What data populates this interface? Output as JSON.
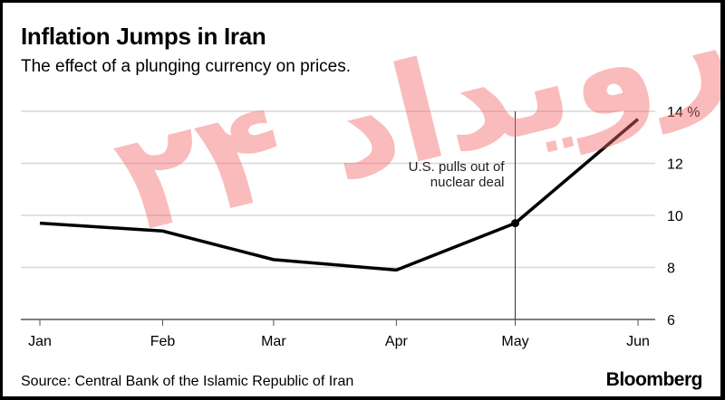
{
  "chart_data": {
    "type": "line",
    "title": "Inflation Jumps in Iran",
    "subtitle": "The effect of a plunging currency on prices.",
    "xlabel": "",
    "ylabel": "",
    "x": [
      "2018-01-01",
      "2018-02-01",
      "2018-03-01",
      "2018-04-01",
      "2018-05-01",
      "2018-06-01"
    ],
    "x_tick_labels": [
      "Jan",
      "Feb",
      "Mar",
      "Apr",
      "May",
      "Jun"
    ],
    "series": [
      {
        "values": [
          9.7,
          9.4,
          8.3,
          7.9,
          9.7,
          13.7
        ],
        "color": "#000000"
      }
    ],
    "ylim": [
      6,
      14
    ],
    "y_ticks": [
      6,
      8,
      10,
      12,
      14
    ],
    "y_tick_labels": [
      "6",
      "8",
      "10",
      "12",
      "14 %"
    ],
    "y_axis_side": "right",
    "grid": true,
    "annotation": {
      "x": "2018-05-01",
      "y": 9.7,
      "text_line1": "U.S. pulls out of",
      "text_line2": "nuclear deal"
    },
    "source": "Source: Central Bank of the Islamic Republic of Iran",
    "brand": "Bloomberg",
    "watermark": "رویداد ۲۴"
  }
}
